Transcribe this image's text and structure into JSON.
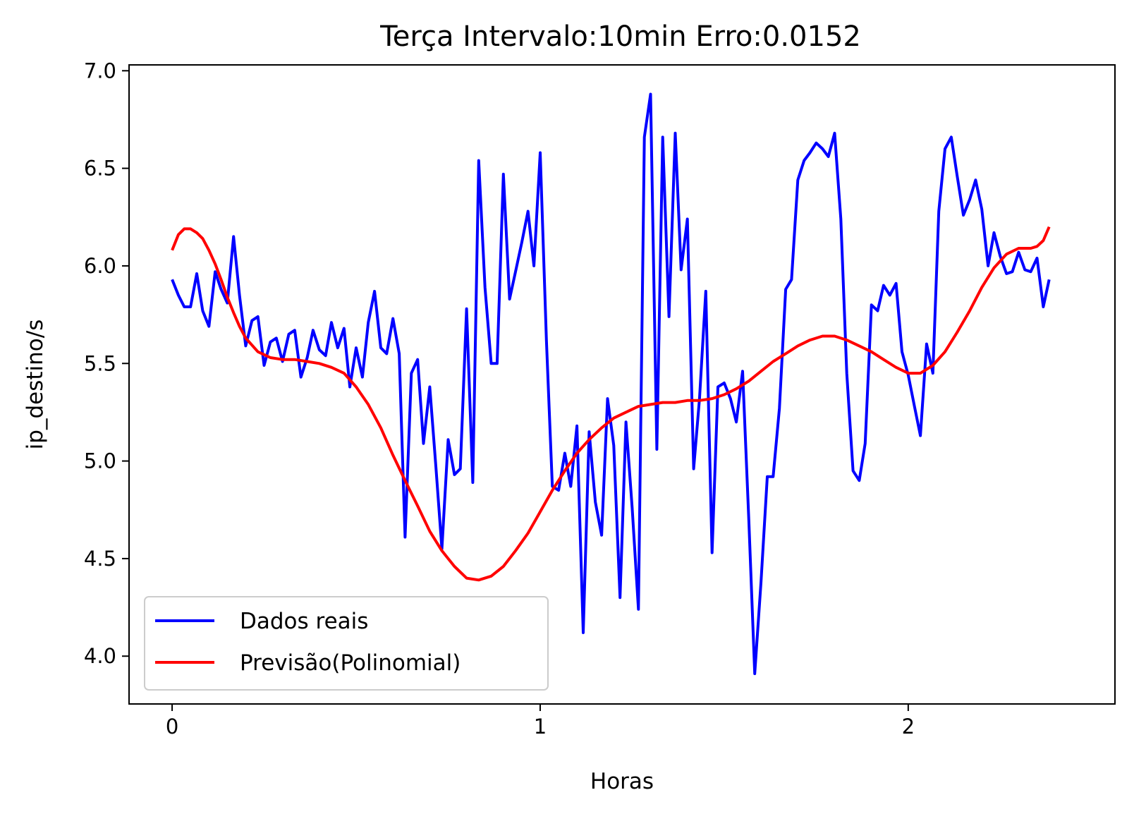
{
  "chart_data": {
    "type": "line",
    "title": "Terça Intervalo:10min Erro:0.0152",
    "xlabel": "Horas",
    "ylabel": "ip_destino/s",
    "xlim": [
      -0.117,
      2.5617
    ],
    "ylim": [
      3.755,
      7.03
    ],
    "xticks": [
      0,
      1,
      2
    ],
    "xtick_labels": [
      "0",
      "1",
      "2"
    ],
    "yticks": [
      4.0,
      4.5,
      5.0,
      5.5,
      6.0,
      6.5,
      7.0
    ],
    "ytick_labels": [
      "4.0",
      "4.5",
      "5.0",
      "5.5",
      "6.0",
      "6.5",
      "7.0"
    ],
    "grid": false,
    "legend_position": "lower-left",
    "series": [
      {
        "name": "Dados reais",
        "color": "#0000ff",
        "points": [
          [
            0.0,
            5.93
          ],
          [
            0.017,
            5.85
          ],
          [
            0.033,
            5.79
          ],
          [
            0.05,
            5.79
          ],
          [
            0.067,
            5.96
          ],
          [
            0.083,
            5.77
          ],
          [
            0.1,
            5.69
          ],
          [
            0.117,
            5.97
          ],
          [
            0.133,
            5.88
          ],
          [
            0.15,
            5.81
          ],
          [
            0.167,
            6.15
          ],
          [
            0.183,
            5.85
          ],
          [
            0.2,
            5.59
          ],
          [
            0.217,
            5.72
          ],
          [
            0.233,
            5.74
          ],
          [
            0.25,
            5.49
          ],
          [
            0.267,
            5.61
          ],
          [
            0.283,
            5.63
          ],
          [
            0.3,
            5.51
          ],
          [
            0.317,
            5.65
          ],
          [
            0.333,
            5.67
          ],
          [
            0.35,
            5.43
          ],
          [
            0.367,
            5.53
          ],
          [
            0.383,
            5.67
          ],
          [
            0.4,
            5.57
          ],
          [
            0.417,
            5.54
          ],
          [
            0.433,
            5.71
          ],
          [
            0.45,
            5.58
          ],
          [
            0.467,
            5.68
          ],
          [
            0.483,
            5.38
          ],
          [
            0.5,
            5.58
          ],
          [
            0.517,
            5.43
          ],
          [
            0.533,
            5.71
          ],
          [
            0.55,
            5.87
          ],
          [
            0.567,
            5.58
          ],
          [
            0.583,
            5.55
          ],
          [
            0.6,
            5.73
          ],
          [
            0.617,
            5.55
          ],
          [
            0.633,
            4.61
          ],
          [
            0.65,
            5.45
          ],
          [
            0.667,
            5.52
          ],
          [
            0.683,
            5.09
          ],
          [
            0.7,
            5.38
          ],
          [
            0.717,
            4.96
          ],
          [
            0.733,
            4.55
          ],
          [
            0.75,
            5.11
          ],
          [
            0.767,
            4.93
          ],
          [
            0.783,
            4.96
          ],
          [
            0.8,
            5.78
          ],
          [
            0.817,
            4.89
          ],
          [
            0.833,
            6.54
          ],
          [
            0.85,
            5.89
          ],
          [
            0.867,
            5.5
          ],
          [
            0.883,
            5.5
          ],
          [
            0.9,
            6.47
          ],
          [
            0.917,
            5.83
          ],
          [
            0.933,
            5.97
          ],
          [
            0.95,
            6.12
          ],
          [
            0.967,
            6.28
          ],
          [
            0.983,
            6.0
          ],
          [
            1.0,
            6.58
          ],
          [
            1.017,
            5.62
          ],
          [
            1.033,
            4.87
          ],
          [
            1.05,
            4.85
          ],
          [
            1.067,
            5.04
          ],
          [
            1.083,
            4.87
          ],
          [
            1.1,
            5.18
          ],
          [
            1.117,
            4.12
          ],
          [
            1.133,
            5.15
          ],
          [
            1.15,
            4.79
          ],
          [
            1.167,
            4.62
          ],
          [
            1.183,
            5.32
          ],
          [
            1.2,
            5.08
          ],
          [
            1.217,
            4.3
          ],
          [
            1.233,
            5.2
          ],
          [
            1.25,
            4.76
          ],
          [
            1.267,
            4.24
          ],
          [
            1.283,
            6.66
          ],
          [
            1.3,
            6.88
          ],
          [
            1.317,
            5.06
          ],
          [
            1.333,
            6.66
          ],
          [
            1.35,
            5.74
          ],
          [
            1.367,
            6.68
          ],
          [
            1.383,
            5.98
          ],
          [
            1.4,
            6.24
          ],
          [
            1.417,
            4.96
          ],
          [
            1.433,
            5.32
          ],
          [
            1.45,
            5.87
          ],
          [
            1.467,
            4.53
          ],
          [
            1.483,
            5.38
          ],
          [
            1.5,
            5.4
          ],
          [
            1.517,
            5.32
          ],
          [
            1.533,
            5.2
          ],
          [
            1.55,
            5.46
          ],
          [
            1.567,
            4.69
          ],
          [
            1.583,
            3.91
          ],
          [
            1.6,
            4.38
          ],
          [
            1.617,
            4.92
          ],
          [
            1.633,
            4.92
          ],
          [
            1.65,
            5.27
          ],
          [
            1.667,
            5.88
          ],
          [
            1.683,
            5.93
          ],
          [
            1.7,
            6.44
          ],
          [
            1.717,
            6.54
          ],
          [
            1.733,
            6.58
          ],
          [
            1.75,
            6.63
          ],
          [
            1.767,
            6.6
          ],
          [
            1.783,
            6.56
          ],
          [
            1.8,
            6.68
          ],
          [
            1.817,
            6.24
          ],
          [
            1.833,
            5.45
          ],
          [
            1.85,
            4.95
          ],
          [
            1.867,
            4.9
          ],
          [
            1.883,
            5.09
          ],
          [
            1.9,
            5.8
          ],
          [
            1.917,
            5.77
          ],
          [
            1.933,
            5.9
          ],
          [
            1.95,
            5.85
          ],
          [
            1.967,
            5.91
          ],
          [
            1.983,
            5.56
          ],
          [
            2.0,
            5.44
          ],
          [
            2.017,
            5.28
          ],
          [
            2.033,
            5.13
          ],
          [
            2.05,
            5.6
          ],
          [
            2.067,
            5.45
          ],
          [
            2.083,
            6.28
          ],
          [
            2.1,
            6.6
          ],
          [
            2.117,
            6.66
          ],
          [
            2.133,
            6.46
          ],
          [
            2.15,
            6.26
          ],
          [
            2.167,
            6.34
          ],
          [
            2.183,
            6.44
          ],
          [
            2.2,
            6.29
          ],
          [
            2.217,
            6.0
          ],
          [
            2.233,
            6.17
          ],
          [
            2.25,
            6.05
          ],
          [
            2.267,
            5.96
          ],
          [
            2.283,
            5.97
          ],
          [
            2.3,
            6.07
          ],
          [
            2.317,
            5.98
          ],
          [
            2.333,
            5.97
          ],
          [
            2.35,
            6.04
          ],
          [
            2.367,
            5.79
          ],
          [
            2.383,
            5.93
          ]
        ]
      },
      {
        "name": "Previsão(Polinomial)",
        "color": "#ff0000",
        "points": [
          [
            0.0,
            6.08
          ],
          [
            0.017,
            6.16
          ],
          [
            0.033,
            6.19
          ],
          [
            0.05,
            6.19
          ],
          [
            0.067,
            6.17
          ],
          [
            0.083,
            6.14
          ],
          [
            0.1,
            6.08
          ],
          [
            0.117,
            6.01
          ],
          [
            0.133,
            5.93
          ],
          [
            0.15,
            5.84
          ],
          [
            0.167,
            5.76
          ],
          [
            0.183,
            5.69
          ],
          [
            0.2,
            5.63
          ],
          [
            0.233,
            5.56
          ],
          [
            0.267,
            5.53
          ],
          [
            0.3,
            5.52
          ],
          [
            0.333,
            5.52
          ],
          [
            0.367,
            5.51
          ],
          [
            0.4,
            5.5
          ],
          [
            0.433,
            5.48
          ],
          [
            0.467,
            5.45
          ],
          [
            0.5,
            5.38
          ],
          [
            0.533,
            5.29
          ],
          [
            0.567,
            5.17
          ],
          [
            0.6,
            5.03
          ],
          [
            0.633,
            4.9
          ],
          [
            0.667,
            4.77
          ],
          [
            0.7,
            4.64
          ],
          [
            0.733,
            4.54
          ],
          [
            0.767,
            4.46
          ],
          [
            0.8,
            4.4
          ],
          [
            0.833,
            4.39
          ],
          [
            0.867,
            4.41
          ],
          [
            0.9,
            4.46
          ],
          [
            0.933,
            4.54
          ],
          [
            0.967,
            4.63
          ],
          [
            1.0,
            4.74
          ],
          [
            1.033,
            4.85
          ],
          [
            1.067,
            4.95
          ],
          [
            1.1,
            5.04
          ],
          [
            1.133,
            5.11
          ],
          [
            1.167,
            5.17
          ],
          [
            1.2,
            5.22
          ],
          [
            1.233,
            5.25
          ],
          [
            1.267,
            5.28
          ],
          [
            1.3,
            5.29
          ],
          [
            1.333,
            5.3
          ],
          [
            1.367,
            5.3
          ],
          [
            1.4,
            5.31
          ],
          [
            1.433,
            5.31
          ],
          [
            1.467,
            5.32
          ],
          [
            1.5,
            5.34
          ],
          [
            1.533,
            5.37
          ],
          [
            1.567,
            5.41
          ],
          [
            1.6,
            5.46
          ],
          [
            1.633,
            5.51
          ],
          [
            1.667,
            5.55
          ],
          [
            1.7,
            5.59
          ],
          [
            1.733,
            5.62
          ],
          [
            1.767,
            5.64
          ],
          [
            1.8,
            5.64
          ],
          [
            1.833,
            5.62
          ],
          [
            1.867,
            5.59
          ],
          [
            1.9,
            5.56
          ],
          [
            1.933,
            5.52
          ],
          [
            1.967,
            5.48
          ],
          [
            2.0,
            5.45
          ],
          [
            2.033,
            5.45
          ],
          [
            2.067,
            5.49
          ],
          [
            2.1,
            5.56
          ],
          [
            2.133,
            5.66
          ],
          [
            2.167,
            5.77
          ],
          [
            2.2,
            5.89
          ],
          [
            2.233,
            5.99
          ],
          [
            2.267,
            6.06
          ],
          [
            2.3,
            6.09
          ],
          [
            2.333,
            6.09
          ],
          [
            2.35,
            6.1
          ],
          [
            2.367,
            6.13
          ],
          [
            2.383,
            6.2
          ]
        ]
      }
    ]
  }
}
